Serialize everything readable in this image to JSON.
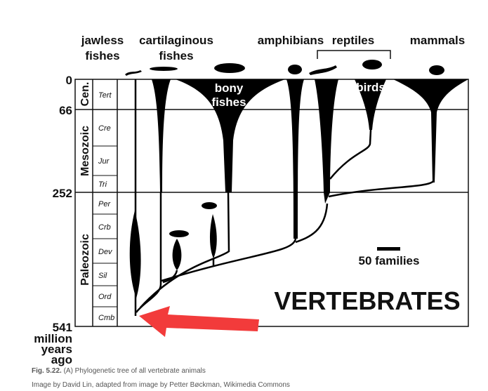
{
  "group_labels": [
    [
      "jawless",
      "fishes"
    ],
    [
      "cartilaginous",
      "fishes"
    ],
    [
      "amphibians"
    ],
    [
      "reptiles"
    ],
    [
      "mammals"
    ]
  ],
  "inner_labels": [
    [
      "bony",
      "fishes"
    ],
    [
      "birds"
    ]
  ],
  "time_axis": {
    "ticks": [
      0,
      66,
      252,
      541
    ],
    "unit": [
      "million",
      "years",
      "ago"
    ]
  },
  "eras": [
    "Cen.",
    "Mesozoic",
    "Paleozoic"
  ],
  "periods": [
    "Tert",
    "Cre",
    "Jur",
    "Tri",
    "Per",
    "Crb",
    "Dev",
    "Sil",
    "Ord",
    "Cmb"
  ],
  "scale_label": "50 families",
  "title": "VERTEBRATES",
  "caption": {
    "figure_number": "Fig. 5.22.",
    "figure_text": "(A) Phylogenetic tree of all vertebrate animals",
    "credit": "Image by David Lin, adapted from image by Petter Bøckman, Wikimedia Commons"
  }
}
